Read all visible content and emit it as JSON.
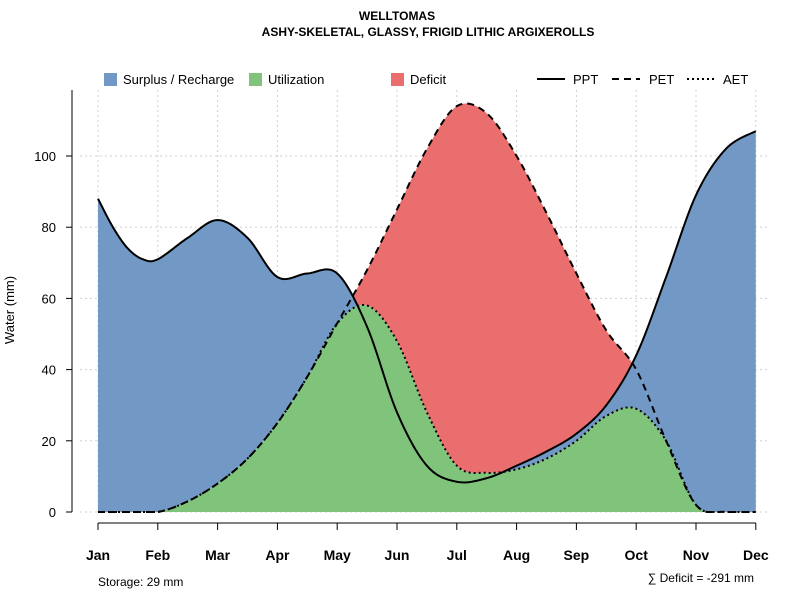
{
  "chart_data": {
    "type": "area",
    "title": "WELLTOMAS",
    "subtitle": "ASHY-SKELETAL, GLASSY, FRIGID LITHIC ARGIXEROLLS",
    "xlabel": "",
    "ylabel": "Water (mm)",
    "categories": [
      "Jan",
      "Feb",
      "Mar",
      "Apr",
      "May",
      "Jun",
      "Jul",
      "Aug",
      "Sep",
      "Oct",
      "Nov",
      "Dec"
    ],
    "ylim": [
      0,
      118
    ],
    "yticks": [
      0,
      20,
      40,
      60,
      80,
      100
    ],
    "grid": true,
    "legend": {
      "placement": "top",
      "items": [
        {
          "label": "Surplus / Recharge",
          "kind": "fill",
          "color": "#7299C6"
        },
        {
          "label": "Utilization",
          "kind": "fill",
          "color": "#80C47C"
        },
        {
          "label": "Deficit",
          "kind": "fill",
          "color": "#EB6E6E"
        },
        {
          "label": "PPT",
          "kind": "line",
          "dash": "solid"
        },
        {
          "label": "PET",
          "kind": "line",
          "dash": "dashed"
        },
        {
          "label": "AET",
          "kind": "line",
          "dash": "dotted"
        }
      ]
    },
    "series": [
      {
        "name": "PPT",
        "x": [
          0,
          0.25,
          0.5,
          0.75,
          1,
          1.5,
          2,
          2.5,
          3,
          3.5,
          4,
          4.5,
          5,
          5.5,
          6,
          6.5,
          7,
          7.5,
          8,
          8.5,
          9,
          9.5,
          10,
          10.5,
          11
        ],
        "values": [
          88,
          80,
          74,
          71,
          71,
          77,
          82,
          77,
          66,
          67,
          67,
          52,
          28,
          13,
          8.5,
          9.5,
          13,
          17,
          22,
          30,
          44,
          66,
          89,
          102,
          107
        ]
      },
      {
        "name": "PET",
        "x": [
          0,
          0.5,
          1,
          1.5,
          2,
          2.5,
          3,
          3.5,
          4,
          4.5,
          5,
          5.5,
          6,
          6.5,
          7,
          7.5,
          8,
          8.5,
          9,
          9.5,
          10,
          10.5,
          11
        ],
        "values": [
          0,
          0,
          0,
          3,
          8,
          15,
          25,
          38,
          53,
          68,
          85,
          102,
          114,
          112,
          100,
          84,
          67,
          51,
          40,
          20,
          2,
          0,
          0
        ]
      },
      {
        "name": "AET",
        "x": [
          0,
          0.5,
          1,
          1.5,
          2,
          2.5,
          3,
          3.5,
          4,
          4.5,
          5,
          5.5,
          6,
          6.5,
          7,
          7.5,
          8,
          8.5,
          9,
          9.5,
          10,
          10.5,
          11
        ],
        "values": [
          0,
          0,
          0,
          3,
          8,
          15,
          25,
          38,
          53,
          58,
          48,
          28,
          13,
          11,
          12,
          15,
          20,
          27,
          29,
          20,
          2,
          0,
          0
        ]
      }
    ],
    "colors": {
      "surplus": "#7299C6",
      "utilization": "#80C47C",
      "deficit": "#EB6E6E"
    },
    "annotations": {
      "storage": "Storage: 29 mm",
      "deficit": "∑ Deficit = -291 mm"
    }
  }
}
